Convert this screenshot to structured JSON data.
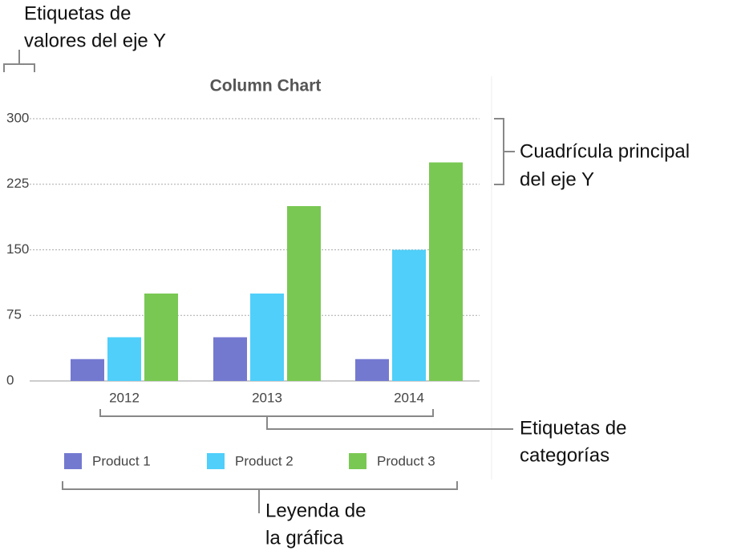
{
  "chart_data": {
    "type": "bar",
    "title": "Column Chart",
    "categories": [
      "2012",
      "2013",
      "2014"
    ],
    "series": [
      {
        "name": "Product 1",
        "color": "#7479d0",
        "values": [
          25,
          50,
          25
        ]
      },
      {
        "name": "Product 2",
        "color": "#4fcffa",
        "values": [
          50,
          100,
          150
        ]
      },
      {
        "name": "Product 3",
        "color": "#79c853",
        "values": [
          100,
          200,
          250
        ]
      }
    ],
    "ylim": [
      0,
      300
    ],
    "yticks": [
      0,
      75,
      150,
      225,
      300
    ],
    "grid": true
  },
  "annotations": [
    {
      "lines": [
        "Etiquetas de",
        "valores del eje Y"
      ]
    },
    {
      "lines": [
        "Cuadrícula principal",
        "del eje Y"
      ]
    },
    {
      "lines": [
        "Etiquetas de",
        "categorías"
      ]
    },
    {
      "lines": [
        "Leyenda de",
        "la gráfica"
      ]
    }
  ]
}
